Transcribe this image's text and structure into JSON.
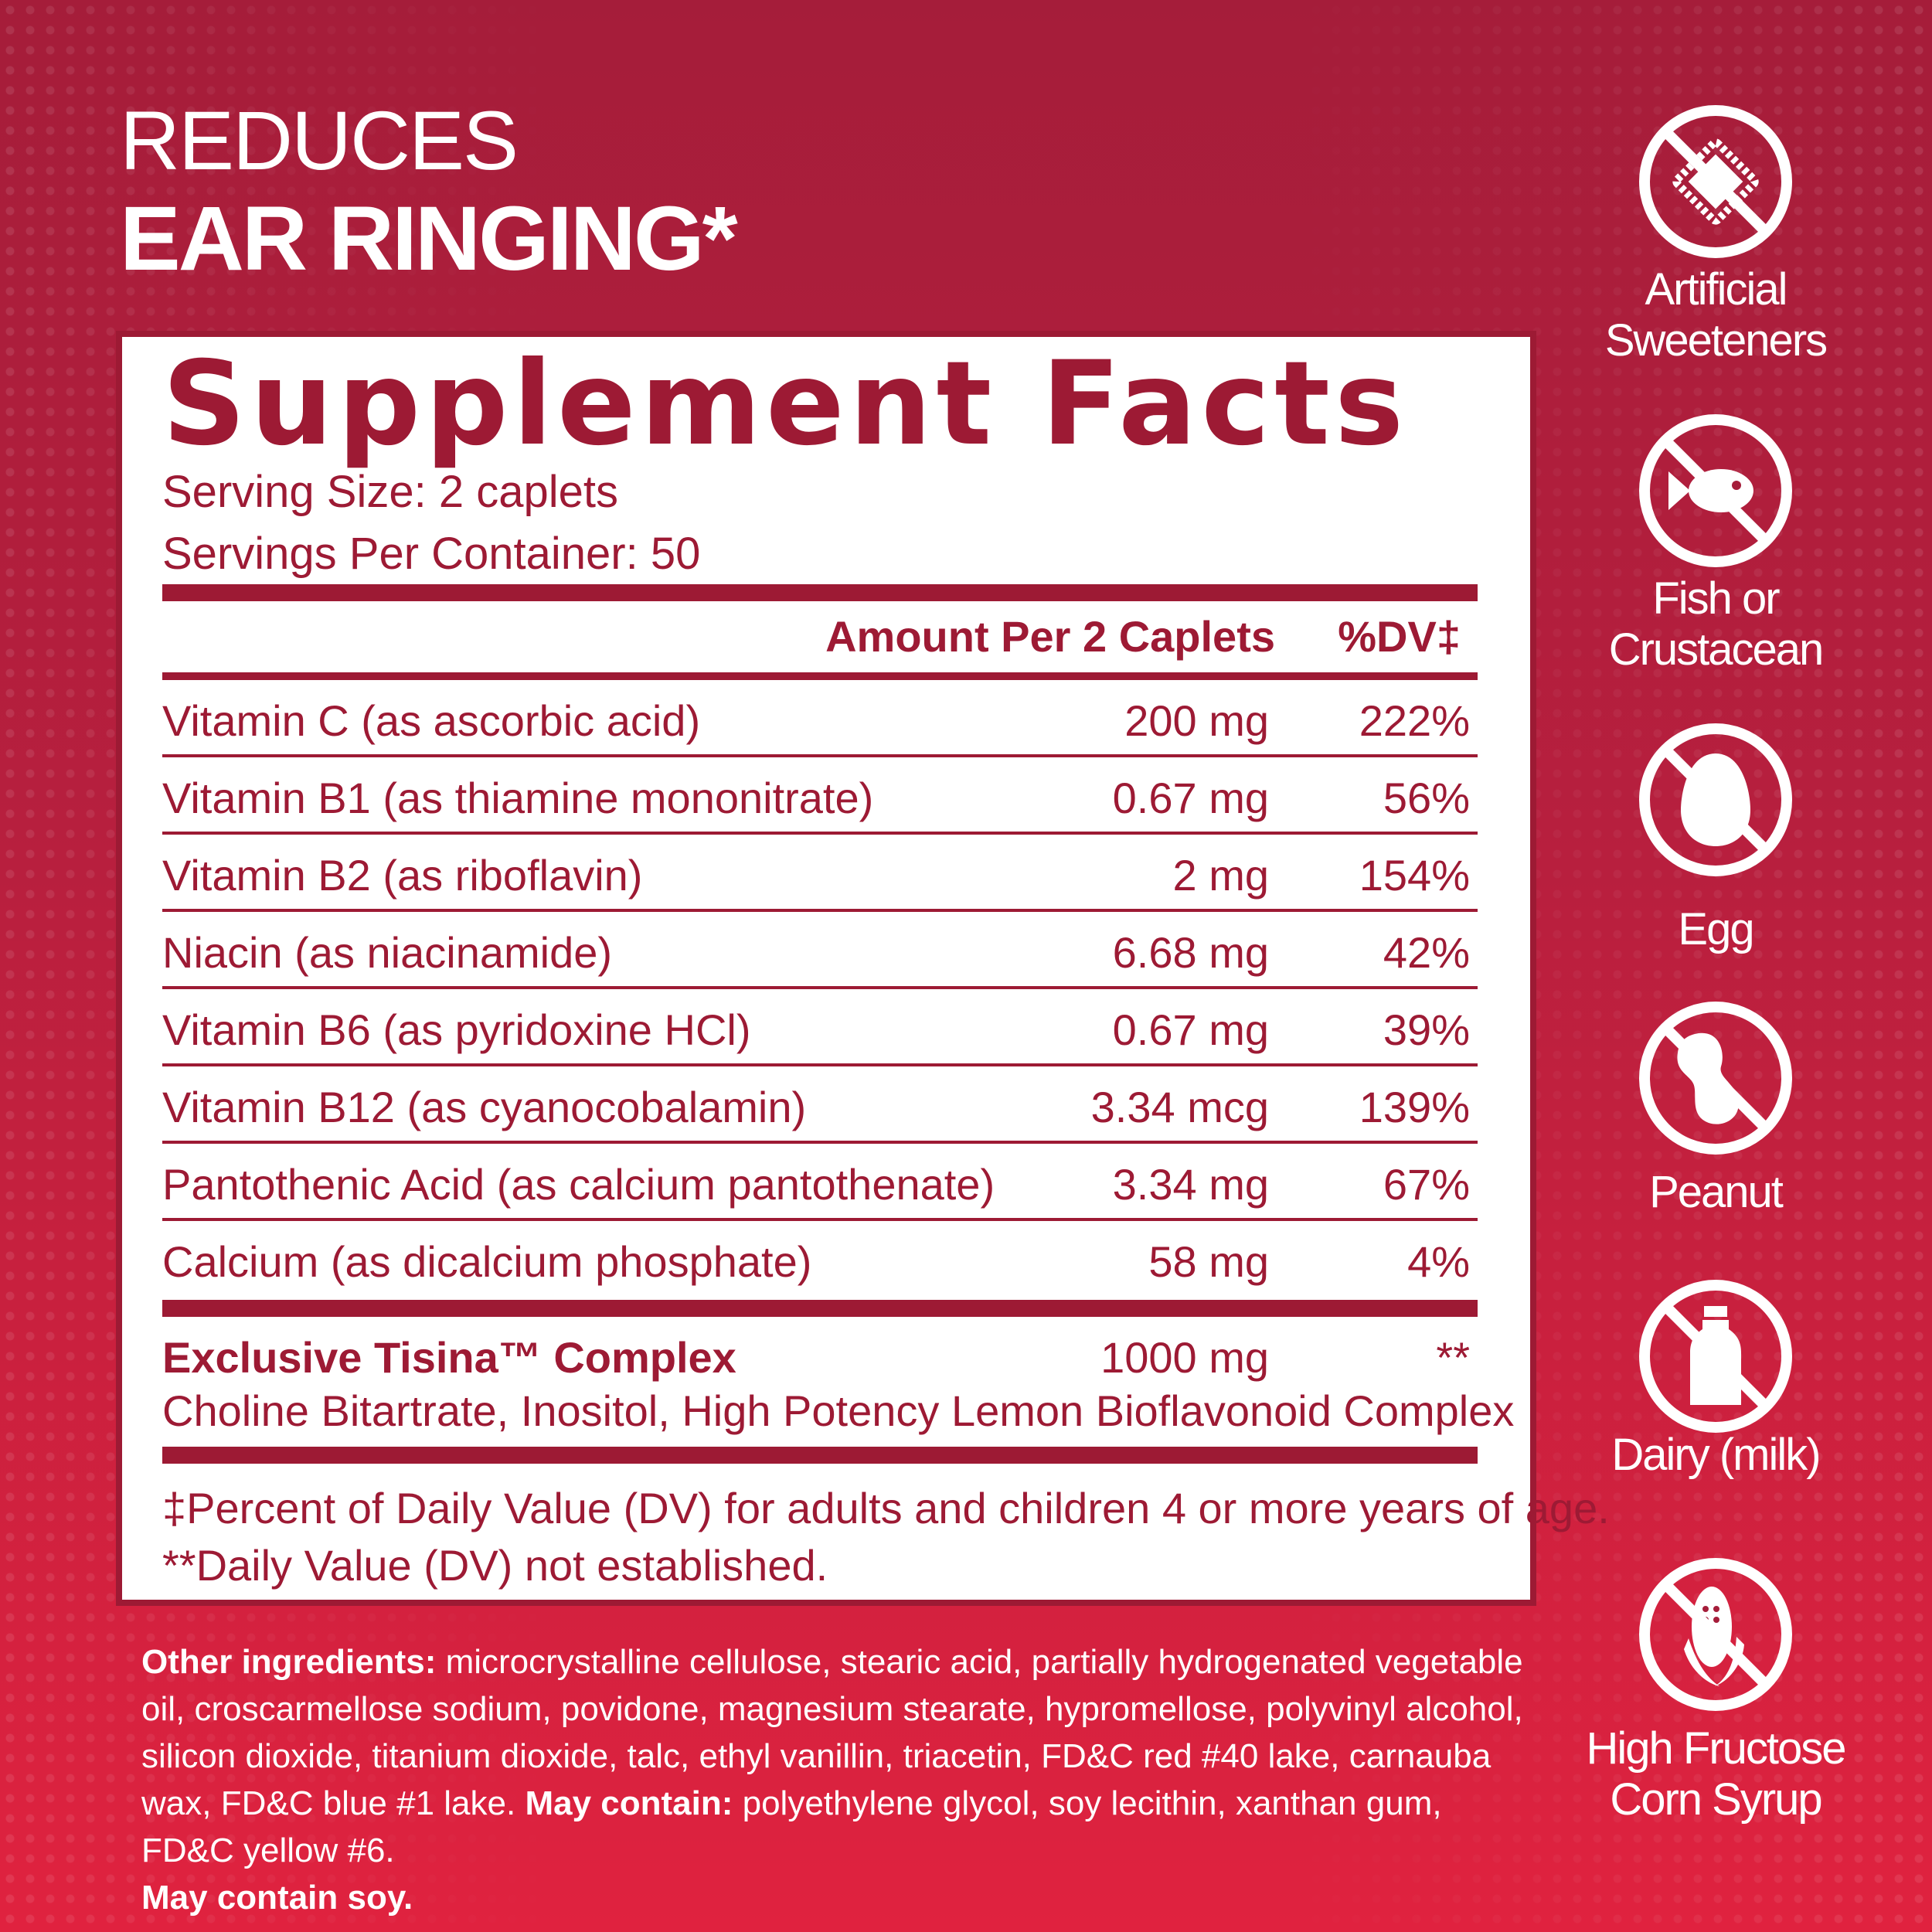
{
  "headline": {
    "line1": "REDUCES",
    "line2": "EAR RINGING*"
  },
  "facts": {
    "title": "Supplement Facts",
    "serving_size": "Serving Size: 2 caplets",
    "servings_per_container": "Servings Per Container: 50",
    "header_amount": "Amount Per 2 Caplets",
    "header_dv": "%DV‡",
    "rows": [
      {
        "name": "Vitamin C (as ascorbic acid)",
        "amount": "200 mg",
        "dv": "222%"
      },
      {
        "name": "Vitamin B1 (as thiamine mononitrate)",
        "amount": "0.67 mg",
        "dv": "56%"
      },
      {
        "name": "Vitamin B2 (as riboflavin)",
        "amount": "2 mg",
        "dv": "154%"
      },
      {
        "name": "Niacin (as niacinamide)",
        "amount": "6.68 mg",
        "dv": "42%"
      },
      {
        "name": "Vitamin B6 (as pyridoxine HCl)",
        "amount": "0.67 mg",
        "dv": "39%"
      },
      {
        "name": "Vitamin B12 (as cyanocobalamin)",
        "amount": "3.34 mcg",
        "dv": "139%"
      },
      {
        "name": "Pantothenic Acid (as calcium pantothenate)",
        "amount": "3.34 mg",
        "dv": "67%"
      },
      {
        "name": "Calcium (as dicalcium phosphate)",
        "amount": "58 mg",
        "dv": "4%"
      }
    ],
    "complex": {
      "name": "Exclusive Tisina™ Complex",
      "amount": "1000 mg",
      "dv": "**",
      "ingredients": "Choline Bitartrate, Inositol, High Potency Lemon Bioflavonoid Complex"
    },
    "footnote1": "‡Percent of Daily Value (DV) for adults and children 4 or more years of age.",
    "footnote2": "**Daily Value (DV) not established."
  },
  "other_ingredients": {
    "label": "Other ingredients:",
    "text": " microcrystalline cellulose, stearic acid, partially hydrogenated vegetable oil, croscarmellose sodium, povidone, magnesium stearate, hypromellose, polyvinyl alcohol, silicon dioxide, titanium dioxide, talc, ethyl vanillin, triacetin, FD&C red #40 lake, carnauba wax, FD&C blue #1 lake. ",
    "may_contain_label": "May contain:",
    "may_contain_text": " polyethylene glycol, soy lecithin, xanthan gum, FD&C yellow #6.",
    "soy_note": "May contain soy."
  },
  "free_from": [
    {
      "icon": "sweetener-packet-icon",
      "label": "Artificial Sweeteners"
    },
    {
      "icon": "fish-icon",
      "label": "Fish or Crustacean"
    },
    {
      "icon": "egg-icon",
      "label": "Egg"
    },
    {
      "icon": "peanut-icon",
      "label": "Peanut"
    },
    {
      "icon": "milk-bottle-icon",
      "label": "Dairy (milk)"
    },
    {
      "icon": "corn-icon",
      "label": "High Fructose Corn Syrup"
    }
  ],
  "colors": {
    "brand_red": "#9d1a34",
    "background_top": "#a51d3a",
    "background_bottom": "#e0223f",
    "white": "#ffffff"
  }
}
